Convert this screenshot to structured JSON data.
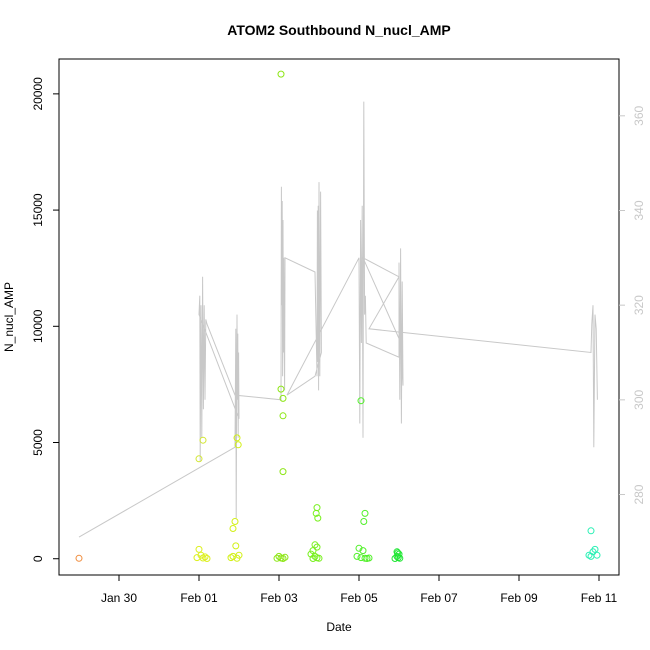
{
  "chart_data": {
    "type": "scatter",
    "title": "ATOM2 Southbound N_nucl_AMP",
    "xlabel": "Date",
    "ylabel": "N_nucl_AMP",
    "x_ticks": [
      "Jan 30",
      "Feb 01",
      "Feb 03",
      "Feb 05",
      "Feb 07",
      "Feb 09",
      "Feb 11"
    ],
    "x_tick_days": [
      30,
      32,
      34,
      36,
      38,
      40,
      42
    ],
    "xlim": [
      28.5,
      42.5
    ],
    "ylim": [
      -700,
      21500
    ],
    "y_ticks": [
      0,
      5000,
      10000,
      15000,
      20000
    ],
    "y2_ticks": [
      280,
      300,
      320,
      340,
      360
    ],
    "y2lim": [
      263,
      372
    ],
    "line_color": "#c8c8c8",
    "points": [
      {
        "x": 29.0,
        "y": 20,
        "color": "#f08c3c"
      },
      {
        "x": 32.0,
        "y": 4300,
        "color": "#d2e632"
      },
      {
        "x": 32.1,
        "y": 5100,
        "color": "#d2e632"
      },
      {
        "x": 32.0,
        "y": 400,
        "color": "#dcf01e"
      },
      {
        "x": 32.05,
        "y": 150,
        "color": "#dcf01e"
      },
      {
        "x": 32.1,
        "y": 30,
        "color": "#dcf01e"
      },
      {
        "x": 32.15,
        "y": 80,
        "color": "#dcf01e"
      },
      {
        "x": 32.2,
        "y": 10,
        "color": "#dcf01e"
      },
      {
        "x": 31.95,
        "y": 50,
        "color": "#dcf01e"
      },
      {
        "x": 32.95,
        "y": 5200,
        "color": "#d2f014"
      },
      {
        "x": 32.98,
        "y": 4900,
        "color": "#d2f014"
      },
      {
        "x": 32.9,
        "y": 1600,
        "color": "#d2f014"
      },
      {
        "x": 32.85,
        "y": 1300,
        "color": "#d2f014"
      },
      {
        "x": 32.92,
        "y": 550,
        "color": "#d2f014"
      },
      {
        "x": 32.85,
        "y": 100,
        "color": "#d2f014"
      },
      {
        "x": 32.95,
        "y": 20,
        "color": "#d2f014"
      },
      {
        "x": 33.0,
        "y": 150,
        "color": "#d2f014"
      },
      {
        "x": 32.8,
        "y": 50,
        "color": "#d2f014"
      },
      {
        "x": 34.05,
        "y": 20850,
        "color": "#8ce614"
      },
      {
        "x": 34.05,
        "y": 7300,
        "color": "#8ce614"
      },
      {
        "x": 34.1,
        "y": 6900,
        "color": "#8ce614"
      },
      {
        "x": 34.1,
        "y": 6150,
        "color": "#8ce614"
      },
      {
        "x": 34.1,
        "y": 3750,
        "color": "#8ce614"
      },
      {
        "x": 34.0,
        "y": 100,
        "color": "#8ce614"
      },
      {
        "x": 34.05,
        "y": 30,
        "color": "#8ce614"
      },
      {
        "x": 34.1,
        "y": 10,
        "color": "#8ce614"
      },
      {
        "x": 34.15,
        "y": 60,
        "color": "#8ce614"
      },
      {
        "x": 33.95,
        "y": 20,
        "color": "#8ce614"
      },
      {
        "x": 34.95,
        "y": 2200,
        "color": "#78f01e"
      },
      {
        "x": 34.93,
        "y": 1950,
        "color": "#78f01e"
      },
      {
        "x": 34.97,
        "y": 1750,
        "color": "#78f01e"
      },
      {
        "x": 34.9,
        "y": 600,
        "color": "#78f01e"
      },
      {
        "x": 34.95,
        "y": 500,
        "color": "#78f01e"
      },
      {
        "x": 34.85,
        "y": 350,
        "color": "#78f01e"
      },
      {
        "x": 34.8,
        "y": 200,
        "color": "#78f01e"
      },
      {
        "x": 34.9,
        "y": 100,
        "color": "#78f01e"
      },
      {
        "x": 34.95,
        "y": 40,
        "color": "#78f01e"
      },
      {
        "x": 35.0,
        "y": 20,
        "color": "#78f01e"
      },
      {
        "x": 34.85,
        "y": 10,
        "color": "#78f01e"
      },
      {
        "x": 36.05,
        "y": 6800,
        "color": "#50f028"
      },
      {
        "x": 36.15,
        "y": 1950,
        "color": "#50f028"
      },
      {
        "x": 36.12,
        "y": 1600,
        "color": "#50f028"
      },
      {
        "x": 36.0,
        "y": 450,
        "color": "#50f028"
      },
      {
        "x": 36.1,
        "y": 350,
        "color": "#50f028"
      },
      {
        "x": 35.95,
        "y": 100,
        "color": "#50f028"
      },
      {
        "x": 36.05,
        "y": 50,
        "color": "#50f028"
      },
      {
        "x": 36.15,
        "y": 20,
        "color": "#50f028"
      },
      {
        "x": 36.2,
        "y": 10,
        "color": "#50f028"
      },
      {
        "x": 36.25,
        "y": 30,
        "color": "#50f028"
      },
      {
        "x": 36.95,
        "y": 300,
        "color": "#1ee632"
      },
      {
        "x": 36.97,
        "y": 250,
        "color": "#1ee632"
      },
      {
        "x": 37.0,
        "y": 200,
        "color": "#1ee632"
      },
      {
        "x": 36.95,
        "y": 100,
        "color": "#1ee632"
      },
      {
        "x": 36.98,
        "y": 50,
        "color": "#1ee632"
      },
      {
        "x": 37.02,
        "y": 20,
        "color": "#1ee632"
      },
      {
        "x": 36.9,
        "y": 10,
        "color": "#1ee632"
      },
      {
        "x": 41.8,
        "y": 1200,
        "color": "#28f0b4"
      },
      {
        "x": 41.9,
        "y": 400,
        "color": "#28f0b4"
      },
      {
        "x": 41.85,
        "y": 300,
        "color": "#28f0b4"
      },
      {
        "x": 41.95,
        "y": 150,
        "color": "#28f0b4"
      },
      {
        "x": 41.8,
        "y": 100,
        "color": "#28f0b4"
      },
      {
        "x": 41.75,
        "y": 150,
        "color": "#28f0b4"
      }
    ],
    "line": [
      [
        29.0,
        271
      ],
      [
        32.9,
        290
      ],
      [
        32.92,
        315
      ],
      [
        32.93,
        275
      ],
      [
        32.95,
        318
      ],
      [
        32.96,
        300
      ],
      [
        32.97,
        314
      ],
      [
        32.98,
        292
      ],
      [
        32.99,
        310
      ],
      [
        33.0,
        296
      ],
      [
        32.0,
        318
      ],
      [
        32.02,
        322
      ],
      [
        32.03,
        287
      ],
      [
        32.05,
        320
      ],
      [
        32.07,
        292
      ],
      [
        32.09,
        326
      ],
      [
        32.11,
        298
      ],
      [
        32.13,
        320
      ],
      [
        32.15,
        300
      ],
      [
        32.17,
        317
      ],
      [
        32.2,
        316
      ],
      [
        32.9,
        301
      ],
      [
        34.05,
        300
      ],
      [
        34.06,
        345
      ],
      [
        34.07,
        320
      ],
      [
        34.08,
        342
      ],
      [
        34.09,
        305
      ],
      [
        34.1,
        338
      ],
      [
        34.11,
        310
      ],
      [
        34.12,
        330
      ],
      [
        34.13,
        312
      ],
      [
        34.14,
        302
      ],
      [
        34.15,
        330
      ],
      [
        34.9,
        327
      ],
      [
        34.95,
        305
      ],
      [
        34.96,
        340
      ],
      [
        34.97,
        308
      ],
      [
        34.98,
        341
      ],
      [
        34.99,
        302
      ],
      [
        35.0,
        346
      ],
      [
        35.02,
        305
      ],
      [
        35.04,
        344
      ],
      [
        35.06,
        310
      ],
      [
        34.9,
        305
      ],
      [
        34.2,
        301
      ],
      [
        36.0,
        330
      ],
      [
        36.02,
        295
      ],
      [
        36.04,
        338
      ],
      [
        36.06,
        312
      ],
      [
        36.08,
        341
      ],
      [
        36.1,
        292
      ],
      [
        36.12,
        363
      ],
      [
        36.14,
        318
      ],
      [
        36.16,
        322
      ],
      [
        36.18,
        312
      ],
      [
        37.0,
        309
      ],
      [
        37.0,
        329
      ],
      [
        37.02,
        300
      ],
      [
        37.04,
        332
      ],
      [
        37.06,
        295
      ],
      [
        37.08,
        325
      ],
      [
        37.1,
        303
      ],
      [
        37.05,
        312
      ],
      [
        36.1,
        330
      ],
      [
        37.0,
        326
      ],
      [
        36.25,
        315
      ],
      [
        41.8,
        310
      ],
      [
        41.82,
        316
      ],
      [
        41.85,
        320
      ],
      [
        41.87,
        290
      ],
      [
        41.9,
        318
      ],
      [
        41.93,
        315
      ],
      [
        41.96,
        300
      ]
    ]
  }
}
